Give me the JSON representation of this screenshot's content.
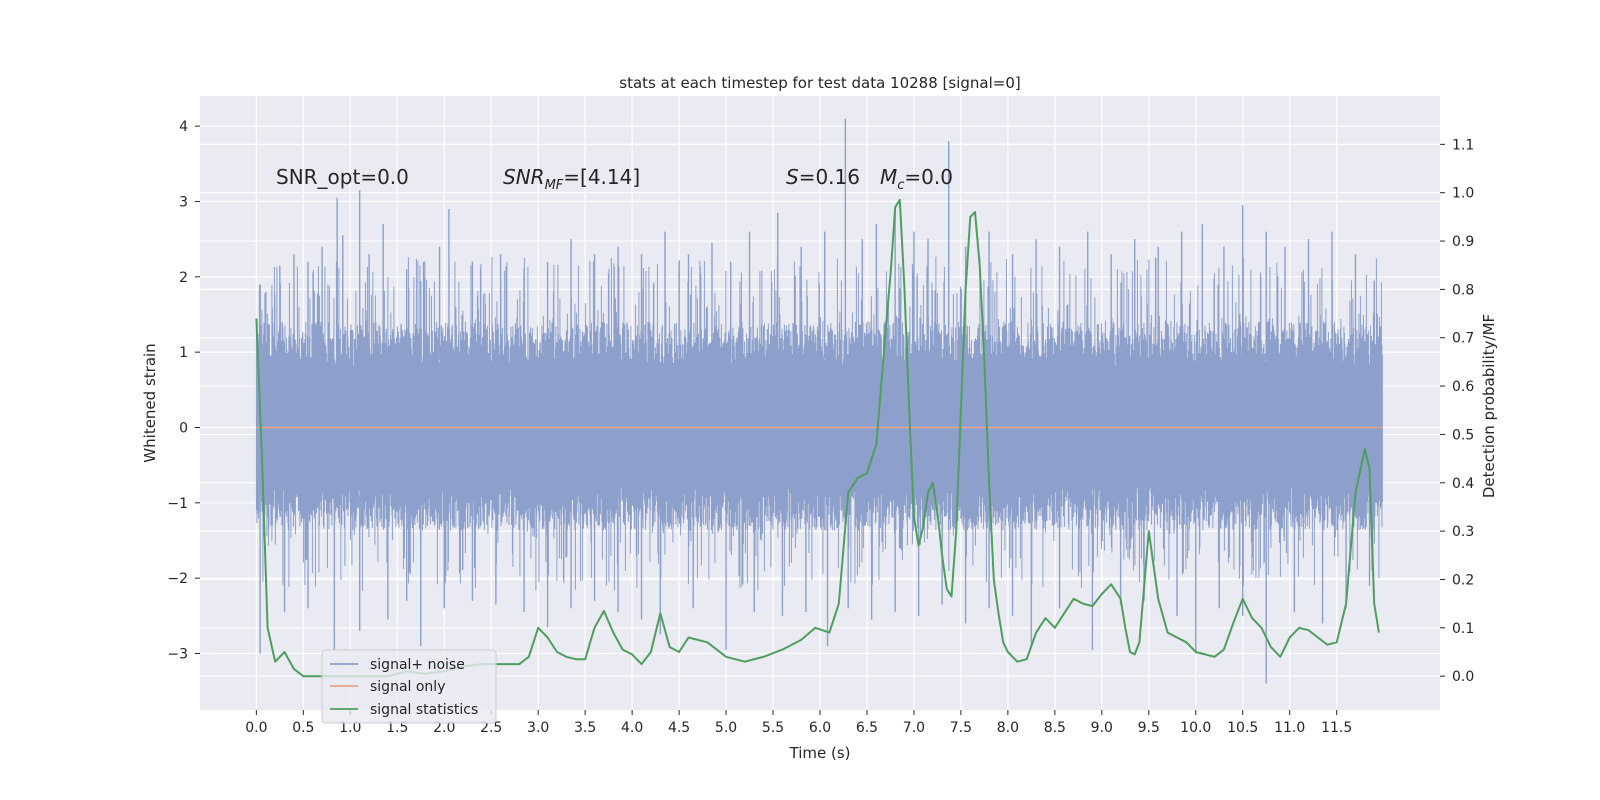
{
  "chart_data": {
    "type": "line",
    "title": "stats at each timestep for test data 10288 [signal=0]",
    "xlabel": "Time (s)",
    "ylabel_left": "Whitened strain",
    "ylabel_right": "Detection probability/MF",
    "xlim": [
      -0.6,
      12.6
    ],
    "ylim_left": [
      -3.75,
      4.4
    ],
    "ylim_right": [
      -0.07,
      1.2
    ],
    "xticks": [
      0.0,
      0.5,
      1.0,
      1.5,
      2.0,
      2.5,
      3.0,
      3.5,
      4.0,
      4.5,
      5.0,
      5.5,
      6.0,
      6.5,
      7.0,
      7.5,
      8.0,
      8.5,
      9.0,
      9.5,
      10.0,
      10.5,
      11.0,
      11.5
    ],
    "xtick_labels": [
      "0.0",
      "0.5",
      "1.0",
      "1.5",
      "2.0",
      "2.5",
      "3.0",
      "3.5",
      "4.0",
      "4.5",
      "5.0",
      "5.5",
      "6.0",
      "6.5",
      "7.0",
      "7.5",
      "8.0",
      "8.5",
      "9.0",
      "9.5",
      "10.0",
      "10.5",
      "11.0",
      "11.5"
    ],
    "yticks_left": [
      -3,
      -2,
      -1,
      0,
      1,
      2,
      3,
      4
    ],
    "ytick_labels_left": [
      "−3",
      "−2",
      "−1",
      "0",
      "1",
      "2",
      "3",
      "4"
    ],
    "yticks_right": [
      0.0,
      0.1,
      0.2,
      0.3,
      0.4,
      0.5,
      0.6,
      0.7,
      0.8,
      0.9,
      1.0,
      1.1
    ],
    "ytick_labels_right": [
      "0.0",
      "0.1",
      "0.2",
      "0.3",
      "0.4",
      "0.5",
      "0.6",
      "0.7",
      "0.8",
      "0.9",
      "1.0",
      "1.1"
    ],
    "annotations": {
      "snr_opt": "SNR_opt=0.0",
      "snr_mf_main": "SNR",
      "snr_mf_sub": "MF",
      "snr_mf_value": "=[4.14]",
      "s_symbol": "S",
      "s_value": "=0.16",
      "mc_symbol": "M",
      "mc_sub": "c",
      "mc_value": "=0.0"
    },
    "legend": {
      "placement": "lower-left",
      "entries": [
        "signal+ noise",
        "signal only",
        "signal statistics"
      ]
    },
    "series": [
      {
        "name": "signal+ noise",
        "color": "#8da0cb",
        "axis": "left",
        "x_range": [
          0.0,
          11.99
        ],
        "band_upper": 1.5,
        "band_lower": -1.45,
        "spikes": [
          {
            "t": 0.1,
            "v": 1.8
          },
          {
            "t": 0.25,
            "v": 2.15
          },
          {
            "t": 0.4,
            "v": 2.3
          },
          {
            "t": 0.55,
            "v": 2.2
          },
          {
            "t": 0.7,
            "v": 2.4
          },
          {
            "t": 0.86,
            "v": 3.05
          },
          {
            "t": 0.92,
            "v": 2.55
          },
          {
            "t": 1.1,
            "v": 3.15
          },
          {
            "t": 1.2,
            "v": 2.3
          },
          {
            "t": 1.35,
            "v": 2.7
          },
          {
            "t": 1.6,
            "v": 2.1
          },
          {
            "t": 1.78,
            "v": 2.2
          },
          {
            "t": 1.95,
            "v": 2.4
          },
          {
            "t": 2.05,
            "v": 2.9
          },
          {
            "t": 2.3,
            "v": 2.2
          },
          {
            "t": 2.6,
            "v": 2.3
          },
          {
            "t": 2.85,
            "v": 2.0
          },
          {
            "t": 3.1,
            "v": 2.2
          },
          {
            "t": 3.35,
            "v": 2.5
          },
          {
            "t": 3.6,
            "v": 2.3
          },
          {
            "t": 3.85,
            "v": 2.4
          },
          {
            "t": 4.1,
            "v": 2.3
          },
          {
            "t": 4.35,
            "v": 2.6
          },
          {
            "t": 4.6,
            "v": 2.3
          },
          {
            "t": 4.85,
            "v": 2.45
          },
          {
            "t": 5.05,
            "v": 2.2
          },
          {
            "t": 5.25,
            "v": 2.6
          },
          {
            "t": 5.55,
            "v": 2.85
          },
          {
            "t": 5.8,
            "v": 2.4
          },
          {
            "t": 6.05,
            "v": 2.6
          },
          {
            "t": 6.27,
            "v": 4.1
          },
          {
            "t": 6.45,
            "v": 2.5
          },
          {
            "t": 6.6,
            "v": 2.7
          },
          {
            "t": 6.8,
            "v": 2.9
          },
          {
            "t": 7.0,
            "v": 2.6
          },
          {
            "t": 7.15,
            "v": 2.5
          },
          {
            "t": 7.37,
            "v": 3.8
          },
          {
            "t": 7.55,
            "v": 2.4
          },
          {
            "t": 7.8,
            "v": 2.6
          },
          {
            "t": 8.05,
            "v": 2.3
          },
          {
            "t": 8.3,
            "v": 2.5
          },
          {
            "t": 8.55,
            "v": 2.4
          },
          {
            "t": 8.85,
            "v": 2.6
          },
          {
            "t": 9.1,
            "v": 2.3
          },
          {
            "t": 9.35,
            "v": 2.5
          },
          {
            "t": 9.6,
            "v": 2.4
          },
          {
            "t": 9.85,
            "v": 2.6
          },
          {
            "t": 10.07,
            "v": 2.7
          },
          {
            "t": 10.3,
            "v": 2.4
          },
          {
            "t": 10.5,
            "v": 2.95
          },
          {
            "t": 10.75,
            "v": 2.6
          },
          {
            "t": 10.95,
            "v": 2.4
          },
          {
            "t": 11.2,
            "v": 2.5
          },
          {
            "t": 11.45,
            "v": 2.6
          },
          {
            "t": 11.7,
            "v": 2.3
          },
          {
            "t": 11.9,
            "v": 1.95
          }
        ],
        "dips": [
          {
            "t": 0.04,
            "v": -3.0
          },
          {
            "t": 0.3,
            "v": -2.45
          },
          {
            "t": 0.55,
            "v": -2.4
          },
          {
            "t": 0.83,
            "v": -2.95
          },
          {
            "t": 1.1,
            "v": -2.7
          },
          {
            "t": 1.4,
            "v": -2.55
          },
          {
            "t": 1.6,
            "v": -2.3
          },
          {
            "t": 1.75,
            "v": -2.9
          },
          {
            "t": 2.0,
            "v": -2.4
          },
          {
            "t": 2.3,
            "v": -2.3
          },
          {
            "t": 2.55,
            "v": -2.35
          },
          {
            "t": 2.85,
            "v": -2.45
          },
          {
            "t": 3.1,
            "v": -2.65
          },
          {
            "t": 3.35,
            "v": -2.4
          },
          {
            "t": 3.6,
            "v": -2.3
          },
          {
            "t": 3.85,
            "v": -2.45
          },
          {
            "t": 4.1,
            "v": -2.55
          },
          {
            "t": 4.3,
            "v": -2.75
          },
          {
            "t": 4.65,
            "v": -2.4
          },
          {
            "t": 5.0,
            "v": -2.95
          },
          {
            "t": 5.3,
            "v": -2.45
          },
          {
            "t": 5.6,
            "v": -2.5
          },
          {
            "t": 5.85,
            "v": -2.45
          },
          {
            "t": 6.08,
            "v": -2.9
          },
          {
            "t": 6.3,
            "v": -2.4
          },
          {
            "t": 6.55,
            "v": -2.55
          },
          {
            "t": 6.8,
            "v": -2.45
          },
          {
            "t": 7.05,
            "v": -2.5
          },
          {
            "t": 7.3,
            "v": -2.35
          },
          {
            "t": 7.55,
            "v": -2.6
          },
          {
            "t": 7.8,
            "v": -2.4
          },
          {
            "t": 8.05,
            "v": -2.5
          },
          {
            "t": 8.25,
            "v": -2.9
          },
          {
            "t": 8.55,
            "v": -2.4
          },
          {
            "t": 8.9,
            "v": -2.95
          },
          {
            "t": 9.2,
            "v": -2.35
          },
          {
            "t": 9.45,
            "v": -2.3
          },
          {
            "t": 9.8,
            "v": -2.5
          },
          {
            "t": 10.0,
            "v": -3.0
          },
          {
            "t": 10.25,
            "v": -2.4
          },
          {
            "t": 10.5,
            "v": -2.5
          },
          {
            "t": 10.75,
            "v": -3.4
          },
          {
            "t": 11.05,
            "v": -2.45
          },
          {
            "t": 11.35,
            "v": -2.6
          },
          {
            "t": 11.6,
            "v": -2.4
          },
          {
            "t": 11.85,
            "v": -2.1
          }
        ]
      },
      {
        "name": "signal only",
        "color": "#e8a48a",
        "axis": "left",
        "x": [
          0.0,
          11.99
        ],
        "y": [
          0.0,
          0.0
        ]
      },
      {
        "name": "signal statistics",
        "color": "#4f9e5e",
        "axis": "right",
        "x": [
          0.0,
          0.06,
          0.12,
          0.2,
          0.3,
          0.4,
          0.5,
          0.6,
          0.8,
          1.0,
          1.2,
          1.4,
          1.6,
          1.8,
          2.0,
          2.2,
          2.4,
          2.6,
          2.8,
          2.9,
          3.0,
          3.1,
          3.2,
          3.3,
          3.4,
          3.5,
          3.6,
          3.7,
          3.8,
          3.9,
          4.0,
          4.1,
          4.2,
          4.3,
          4.4,
          4.5,
          4.6,
          4.8,
          5.0,
          5.2,
          5.4,
          5.6,
          5.8,
          5.95,
          6.1,
          6.2,
          6.3,
          6.4,
          6.5,
          6.6,
          6.65,
          6.7,
          6.75,
          6.8,
          6.85,
          6.9,
          6.95,
          7.0,
          7.05,
          7.1,
          7.15,
          7.2,
          7.25,
          7.3,
          7.35,
          7.4,
          7.45,
          7.5,
          7.55,
          7.6,
          7.65,
          7.7,
          7.75,
          7.8,
          7.85,
          7.9,
          7.95,
          8.0,
          8.1,
          8.2,
          8.3,
          8.4,
          8.5,
          8.6,
          8.7,
          8.8,
          8.9,
          9.0,
          9.1,
          9.2,
          9.25,
          9.3,
          9.35,
          9.4,
          9.5,
          9.6,
          9.7,
          9.8,
          9.9,
          10.0,
          10.1,
          10.2,
          10.3,
          10.4,
          10.5,
          10.6,
          10.7,
          10.8,
          10.9,
          11.0,
          11.1,
          11.2,
          11.3,
          11.4,
          11.5,
          11.6,
          11.7,
          11.8,
          11.85,
          11.9,
          11.95
        ],
        "y": [
          0.74,
          0.45,
          0.1,
          0.03,
          0.05,
          0.015,
          0.0,
          0.0,
          0.0,
          0.0,
          0.0,
          0.0,
          0.01,
          0.005,
          0.01,
          0.02,
          0.025,
          0.025,
          0.025,
          0.04,
          0.1,
          0.08,
          0.05,
          0.04,
          0.035,
          0.035,
          0.1,
          0.135,
          0.09,
          0.055,
          0.045,
          0.025,
          0.05,
          0.13,
          0.06,
          0.05,
          0.08,
          0.07,
          0.04,
          0.03,
          0.04,
          0.055,
          0.075,
          0.1,
          0.09,
          0.15,
          0.38,
          0.41,
          0.42,
          0.48,
          0.6,
          0.72,
          0.83,
          0.97,
          0.985,
          0.8,
          0.55,
          0.33,
          0.27,
          0.31,
          0.38,
          0.4,
          0.34,
          0.25,
          0.18,
          0.165,
          0.3,
          0.55,
          0.8,
          0.95,
          0.96,
          0.85,
          0.65,
          0.4,
          0.2,
          0.13,
          0.07,
          0.05,
          0.03,
          0.035,
          0.09,
          0.12,
          0.1,
          0.13,
          0.16,
          0.15,
          0.145,
          0.17,
          0.19,
          0.16,
          0.1,
          0.05,
          0.045,
          0.07,
          0.3,
          0.16,
          0.09,
          0.08,
          0.07,
          0.05,
          0.045,
          0.04,
          0.055,
          0.11,
          0.16,
          0.12,
          0.1,
          0.06,
          0.04,
          0.08,
          0.1,
          0.095,
          0.08,
          0.065,
          0.07,
          0.15,
          0.38,
          0.47,
          0.43,
          0.15,
          0.09
        ]
      }
    ]
  }
}
